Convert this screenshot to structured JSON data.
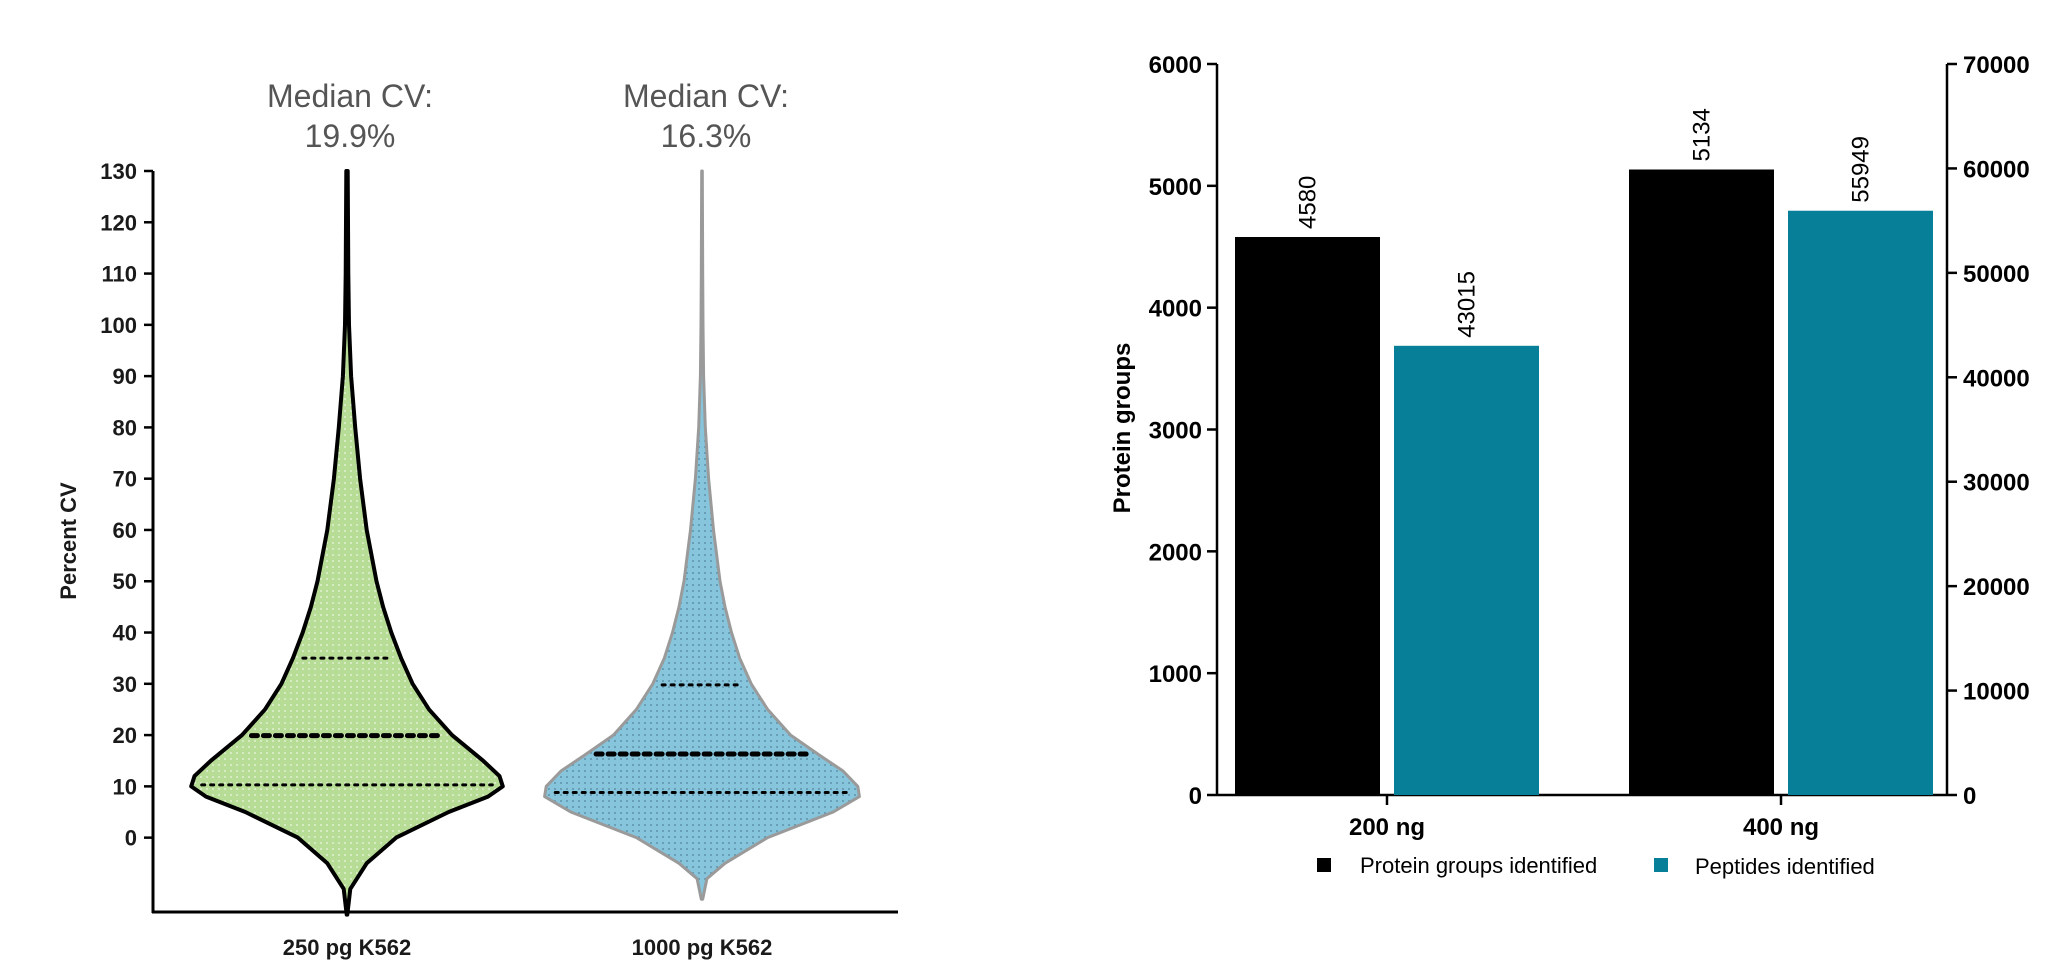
{
  "colors": {
    "violin_1_fill": "#b7dc95",
    "violin_1_edge": "#000000",
    "violin_2_fill": "#86c5dc",
    "violin_2_edge": "#9a9a9a",
    "protein_bar": "#000000",
    "peptide_bar": "#087f99"
  },
  "chart_data": [
    {
      "type": "violin",
      "ylabel": "Percent CV",
      "ylim": [
        -15,
        130
      ],
      "yticks": [
        0,
        10,
        20,
        30,
        40,
        50,
        60,
        70,
        80,
        90,
        100,
        110,
        120,
        130
      ],
      "groups": [
        {
          "name": "250 pg K562",
          "title_line1": "Median CV:",
          "title_line2": "19.9%",
          "median": 19.9,
          "q1": 10.3,
          "q3": 35.0,
          "min": -15,
          "max": 130,
          "density_profile": [
            [
              -15,
              0.002
            ],
            [
              -10,
              0.02
            ],
            [
              -5,
              0.12
            ],
            [
              0,
              0.3
            ],
            [
              5,
              0.62
            ],
            [
              8,
              0.86
            ],
            [
              10,
              0.95
            ],
            [
              12,
              0.93
            ],
            [
              15,
              0.83
            ],
            [
              20,
              0.64
            ],
            [
              25,
              0.5
            ],
            [
              30,
              0.4
            ],
            [
              35,
              0.33
            ],
            [
              40,
              0.27
            ],
            [
              45,
              0.22
            ],
            [
              50,
              0.18
            ],
            [
              55,
              0.15
            ],
            [
              60,
              0.12
            ],
            [
              70,
              0.08
            ],
            [
              80,
              0.05
            ],
            [
              90,
              0.025
            ],
            [
              100,
              0.012
            ],
            [
              110,
              0.008
            ],
            [
              120,
              0.006
            ],
            [
              130,
              0.004
            ]
          ]
        },
        {
          "name": "1000 pg K562",
          "title_line1": "Median CV:",
          "title_line2": "16.3%",
          "median": 16.3,
          "q1": 8.8,
          "q3": 29.8,
          "min": -12,
          "max": 130,
          "density_profile": [
            [
              -12,
              0.004
            ],
            [
              -8,
              0.03
            ],
            [
              -5,
              0.14
            ],
            [
              0,
              0.4
            ],
            [
              5,
              0.8
            ],
            [
              8,
              0.96
            ],
            [
              10,
              0.95
            ],
            [
              13,
              0.86
            ],
            [
              16,
              0.72
            ],
            [
              20,
              0.54
            ],
            [
              25,
              0.4
            ],
            [
              30,
              0.3
            ],
            [
              35,
              0.23
            ],
            [
              40,
              0.18
            ],
            [
              45,
              0.14
            ],
            [
              50,
              0.11
            ],
            [
              60,
              0.07
            ],
            [
              70,
              0.04
            ],
            [
              80,
              0.02
            ],
            [
              90,
              0.01
            ],
            [
              100,
              0.006
            ],
            [
              110,
              0.004
            ],
            [
              120,
              0.003
            ],
            [
              130,
              0.002
            ]
          ]
        }
      ]
    },
    {
      "type": "bar",
      "categories": [
        "200 ng",
        "400 ng"
      ],
      "ylabel": "Protein groups",
      "ylim": [
        0,
        6000
      ],
      "yticks": [
        0,
        1000,
        2000,
        3000,
        4000,
        5000,
        6000
      ],
      "y2lim": [
        0,
        70000
      ],
      "y2ticks": [
        0,
        10000,
        20000,
        30000,
        40000,
        50000,
        60000,
        70000
      ],
      "legend_position": "bottom",
      "series": [
        {
          "name": "Protein groups identified",
          "axis": "left",
          "values": [
            4580,
            5134
          ],
          "labels": [
            "4580",
            "5134"
          ]
        },
        {
          "name": "Peptides identified",
          "axis": "right",
          "values": [
            43015,
            55949
          ],
          "labels": [
            "43015",
            "55949"
          ]
        }
      ]
    }
  ]
}
